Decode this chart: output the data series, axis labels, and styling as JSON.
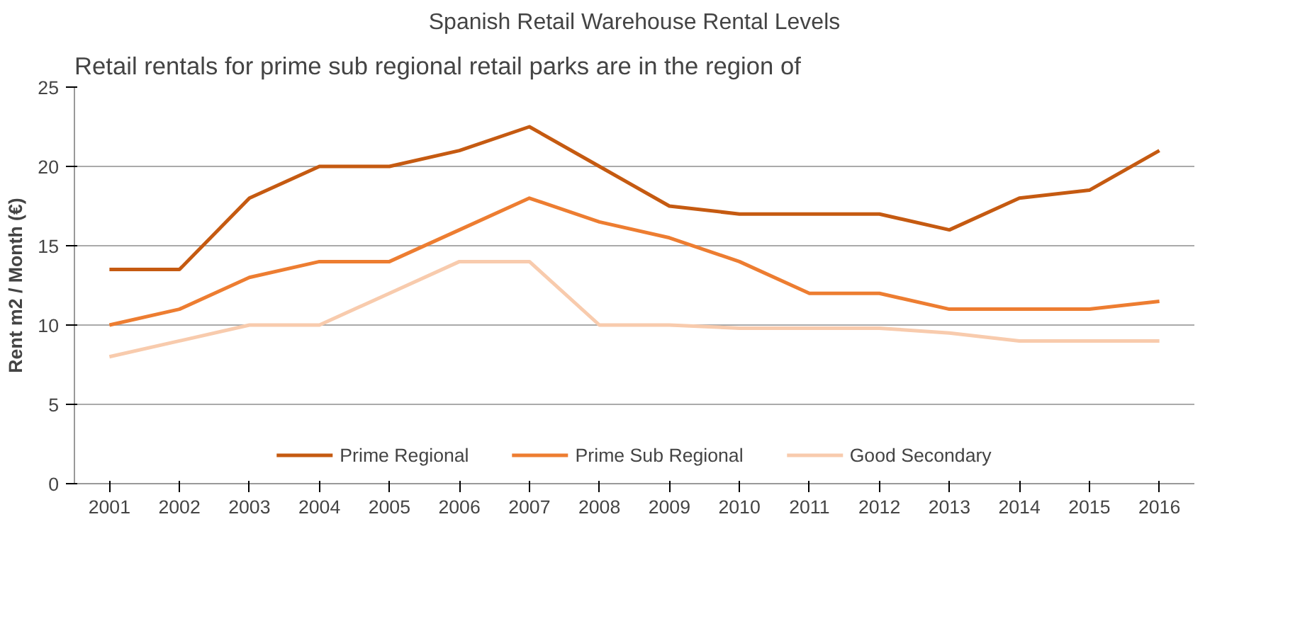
{
  "chart_data": {
    "type": "line",
    "title": "Spanish Retail Warehouse Rental Levels",
    "ylabel": "Rent m2 / Month (€)",
    "annotations": [
      "Retail rentals for prime sub regional retail parks are in the region of"
    ],
    "categories": [
      "2001",
      "2002",
      "2003",
      "2004",
      "2005",
      "2006",
      "2007",
      "2008",
      "2009",
      "2010",
      "2011",
      "2012",
      "2013",
      "2014",
      "2015",
      "2016"
    ],
    "series": [
      {
        "name": "Prime Regional",
        "color": "#c55a11",
        "values": [
          13.5,
          13.5,
          18,
          20,
          20,
          21,
          22.5,
          20,
          17.5,
          17,
          17,
          17,
          16,
          18,
          18.5,
          21
        ]
      },
      {
        "name": "Prime Sub Regional",
        "color": "#ed7d31",
        "values": [
          10,
          11,
          13,
          14,
          14,
          16,
          18,
          16.5,
          15.5,
          14,
          12,
          12,
          11,
          11,
          11,
          11.5
        ]
      },
      {
        "name": "Good Secondary",
        "color": "#f8cbad",
        "values": [
          8,
          9,
          10,
          10,
          12,
          14,
          14,
          10,
          10,
          9.8,
          9.8,
          9.8,
          9.5,
          9,
          9,
          9
        ]
      }
    ],
    "ylim": [
      0,
      25
    ],
    "yticks": [
      0,
      5,
      10,
      15,
      20,
      25
    ],
    "grid": "y",
    "legend": "bottom",
    "marker": "none",
    "line_style": "solid"
  }
}
